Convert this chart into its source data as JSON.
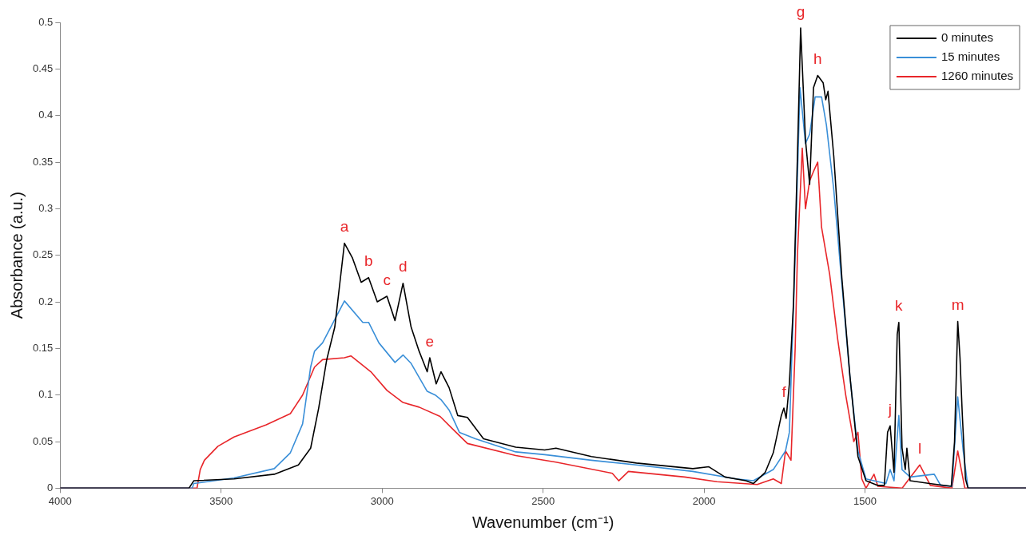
{
  "chart_data": {
    "type": "line",
    "xlabel": "Wavenumber (cm⁻¹)",
    "ylabel": "Absorbance (a.u.)",
    "xlim": [
      4000,
      1000
    ],
    "xticks": [
      4000,
      3500,
      3000,
      2500,
      2000,
      1500
    ],
    "ylim": [
      0,
      0.5
    ],
    "yticks": [
      0,
      0.05,
      0.1,
      0.15,
      0.2,
      0.25,
      0.3,
      0.35,
      0.4,
      0.45,
      0.5
    ],
    "legend": "top right",
    "series": [
      {
        "name": "0 minutes",
        "color": "#000000",
        "x": [
          4000,
          3600,
          3585,
          3460,
          3335,
          3260,
          3222,
          3197,
          3172,
          3147,
          3117,
          3092,
          3065,
          3042,
          3015,
          2985,
          2960,
          2935,
          2910,
          2885,
          2860,
          2852,
          2832,
          2817,
          2792,
          2765,
          2735,
          2685,
          2585,
          2495,
          2460,
          2350,
          2210,
          2035,
          1985,
          1935,
          1870,
          1847,
          1810,
          1785,
          1760,
          1752,
          1745,
          1735,
          1722,
          1710,
          1700,
          1685,
          1672,
          1660,
          1647,
          1630,
          1622,
          1615,
          1597,
          1572,
          1547,
          1522,
          1497,
          1460,
          1440,
          1430,
          1422,
          1410,
          1400,
          1395,
          1385,
          1375,
          1370,
          1360,
          1300,
          1232,
          1222,
          1212,
          1205,
          1198,
          1188,
          1180,
          1000
        ],
        "values": [
          0,
          0,
          0.008,
          0.01,
          0.015,
          0.025,
          0.043,
          0.086,
          0.138,
          0.173,
          0.263,
          0.247,
          0.221,
          0.226,
          0.2,
          0.206,
          0.18,
          0.22,
          0.173,
          0.147,
          0.125,
          0.14,
          0.112,
          0.125,
          0.108,
          0.078,
          0.076,
          0.053,
          0.044,
          0.041,
          0.043,
          0.034,
          0.027,
          0.021,
          0.023,
          0.012,
          0.008,
          0.005,
          0.017,
          0.038,
          0.078,
          0.086,
          0.075,
          0.112,
          0.2,
          0.356,
          0.494,
          0.374,
          0.326,
          0.43,
          0.443,
          0.435,
          0.417,
          0.426,
          0.356,
          0.226,
          0.121,
          0.034,
          0.008,
          0.003,
          0.003,
          0.06,
          0.067,
          0.017,
          0.165,
          0.178,
          0.043,
          0.02,
          0.043,
          0.008,
          0.005,
          0.002,
          0.05,
          0.179,
          0.14,
          0.08,
          0.01,
          0,
          0
        ]
      },
      {
        "name": "15 minutes",
        "color": "#3a8fd8",
        "x": [
          4000,
          3590,
          3585,
          3460,
          3335,
          3285,
          3247,
          3222,
          3210,
          3185,
          3117,
          3060,
          3042,
          3010,
          2960,
          2935,
          2910,
          2860,
          2835,
          2817,
          2792,
          2760,
          2710,
          2585,
          2495,
          2350,
          2210,
          2035,
          1900,
          1847,
          1785,
          1747,
          1735,
          1717,
          1702,
          1685,
          1672,
          1655,
          1635,
          1620,
          1597,
          1572,
          1547,
          1522,
          1497,
          1435,
          1422,
          1410,
          1395,
          1385,
          1360,
          1285,
          1265,
          1230,
          1212,
          1195,
          1180,
          1000
        ],
        "values": [
          0,
          0,
          0.005,
          0.011,
          0.021,
          0.038,
          0.069,
          0.13,
          0.147,
          0.156,
          0.201,
          0.178,
          0.178,
          0.156,
          0.135,
          0.143,
          0.134,
          0.104,
          0.1,
          0.095,
          0.084,
          0.06,
          0.053,
          0.039,
          0.036,
          0.03,
          0.025,
          0.018,
          0.01,
          0.008,
          0.02,
          0.04,
          0.06,
          0.25,
          0.43,
          0.37,
          0.38,
          0.42,
          0.42,
          0.39,
          0.32,
          0.22,
          0.12,
          0.04,
          0.01,
          0.005,
          0.02,
          0.008,
          0.078,
          0.02,
          0.012,
          0.015,
          0.003,
          0.002,
          0.098,
          0.04,
          0,
          0
        ]
      },
      {
        "name": "1260 minutes",
        "color": "#e8262a",
        "x": [
          4000,
          3575,
          3565,
          3552,
          3510,
          3460,
          3360,
          3285,
          3247,
          3210,
          3185,
          3117,
          3097,
          3035,
          2985,
          2935,
          2885,
          2820,
          2785,
          2735,
          2585,
          2460,
          2285,
          2265,
          2235,
          2060,
          1960,
          1835,
          1785,
          1760,
          1747,
          1730,
          1717,
          1710,
          1695,
          1685,
          1672,
          1660,
          1647,
          1635,
          1610,
          1585,
          1560,
          1535,
          1522,
          1510,
          1497,
          1472,
          1460,
          1385,
          1330,
          1297,
          1230,
          1212,
          1190,
          1000
        ],
        "values": [
          0,
          0,
          0.02,
          0.03,
          0.045,
          0.055,
          0.068,
          0.08,
          0.1,
          0.13,
          0.138,
          0.14,
          0.142,
          0.125,
          0.105,
          0.092,
          0.087,
          0.077,
          0.065,
          0.048,
          0.035,
          0.028,
          0.016,
          0.008,
          0.018,
          0.012,
          0.007,
          0.004,
          0.01,
          0.005,
          0.04,
          0.03,
          0.15,
          0.25,
          0.365,
          0.3,
          0.33,
          0.34,
          0.35,
          0.28,
          0.23,
          0.16,
          0.1,
          0.05,
          0.06,
          0.01,
          0,
          0.015,
          0.002,
          0,
          0.025,
          0.003,
          0,
          0.04,
          0,
          0
        ]
      }
    ],
    "annotations": [
      {
        "text": "a",
        "x": 3117,
        "y": 0.263
      },
      {
        "text": "b",
        "x": 3042,
        "y": 0.226
      },
      {
        "text": "c",
        "x": 2985,
        "y": 0.206
      },
      {
        "text": "d",
        "x": 2935,
        "y": 0.22
      },
      {
        "text": "e",
        "x": 2852,
        "y": 0.14
      },
      {
        "text": "f",
        "x": 1752,
        "y": 0.086
      },
      {
        "text": "g",
        "x": 1700,
        "y": 0.494
      },
      {
        "text": "h",
        "x": 1647,
        "y": 0.443
      },
      {
        "text": "j",
        "x": 1422,
        "y": 0.067
      },
      {
        "text": "k",
        "x": 1395,
        "y": 0.178
      },
      {
        "text": "l",
        "x": 1330,
        "y": 0.025
      },
      {
        "text": "m",
        "x": 1212,
        "y": 0.179
      }
    ]
  }
}
